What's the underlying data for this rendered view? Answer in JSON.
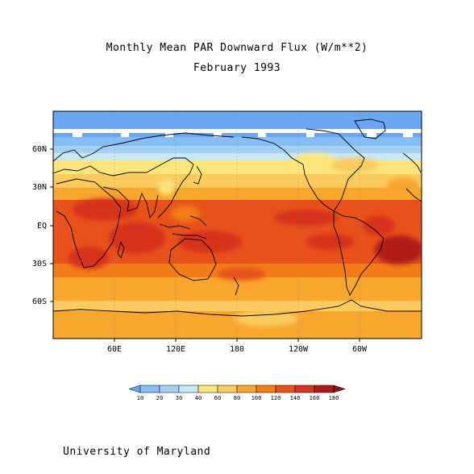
{
  "title": "Monthly Mean PAR Downward Flux (W/m**2)",
  "subtitle": "February 1993",
  "credit": "University of Maryland",
  "lat_labels": [
    "60N",
    "30N",
    "EQ",
    "30S",
    "60S"
  ],
  "lon_labels": [
    "60E",
    "120E",
    "180",
    "120W",
    "60W"
  ],
  "colorbar": {
    "levels": [
      "10",
      "20",
      "30",
      "40",
      "60",
      "80",
      "100",
      "120",
      "140",
      "160",
      "180"
    ],
    "colors": [
      "#6aa6f2",
      "#86bdf6",
      "#a6d1f6",
      "#c6e8f8",
      "#fde57a",
      "#fbcb5d",
      "#f9a62e",
      "#f27c16",
      "#e8521a",
      "#d6321c",
      "#b01a14",
      "#8c0f0c"
    ]
  }
}
